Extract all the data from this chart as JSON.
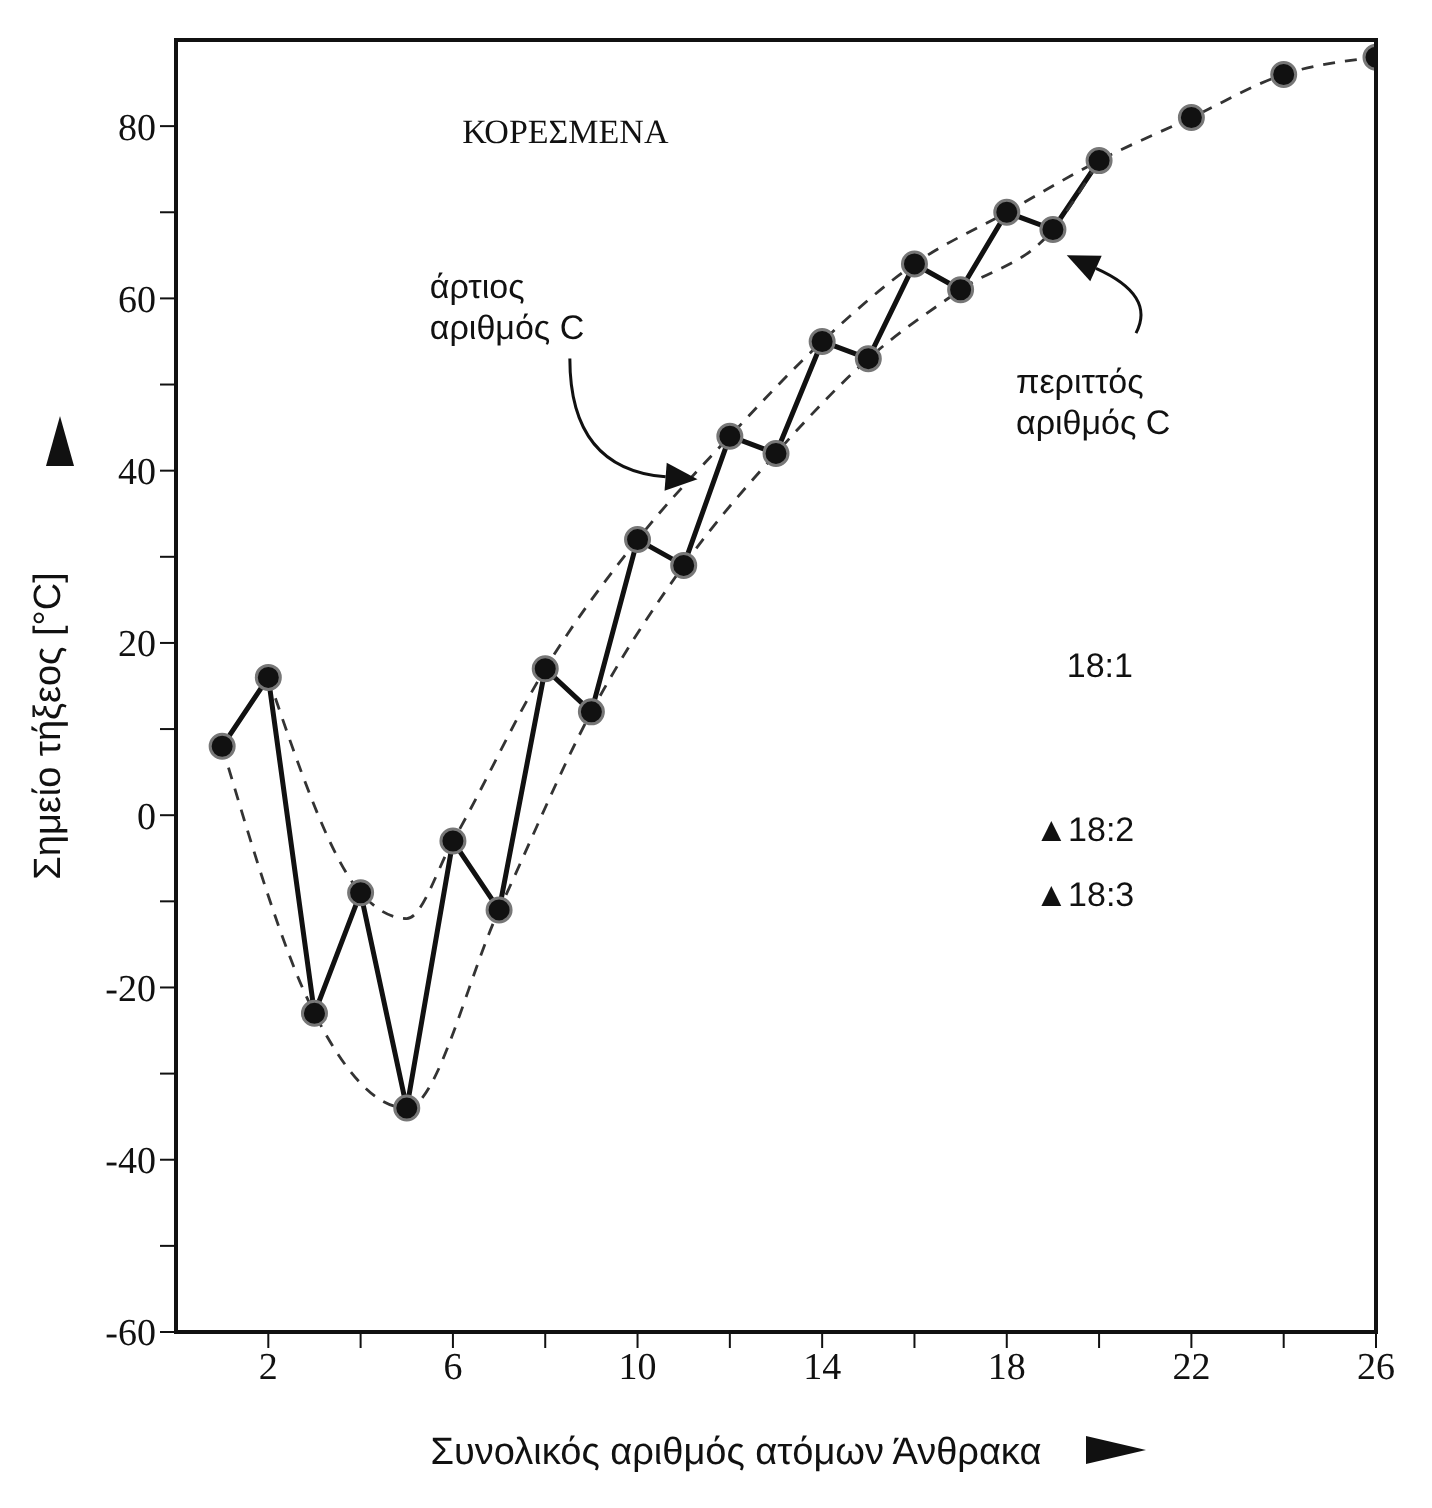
{
  "chart_data": {
    "type": "line",
    "xlabel": "Συνολικός  αριθμός ατόμων Άνθρακα",
    "ylabel": "Σημείο τήξεος [°C]",
    "xlim": [
      0,
      26
    ],
    "xticks": [
      2,
      {
        "value": 4,
        "label": null
      },
      6,
      {
        "value": 8,
        "label": null
      },
      10,
      {
        "value": 12,
        "label": null
      },
      14,
      {
        "value": 16,
        "label": null
      },
      18,
      {
        "value": 20,
        "label": null
      },
      22,
      {
        "value": 24,
        "label": null
      },
      26
    ],
    "ylim": [
      -60,
      90
    ],
    "yticks": [
      -60,
      {
        "value": -50,
        "label": null
      },
      -40,
      {
        "value": -30,
        "label": null
      },
      -20,
      {
        "value": -10,
        "label": null
      },
      0,
      {
        "value": 10,
        "label": null
      },
      20,
      {
        "value": 30,
        "label": null
      },
      40,
      {
        "value": 50,
        "label": null
      },
      60,
      {
        "value": 70,
        "label": null
      },
      80
    ],
    "series": [
      {
        "marker": "circle",
        "line_style": "solid",
        "color": "#111111",
        "x": [
          1,
          2,
          3,
          4,
          5,
          6,
          7,
          8,
          9,
          10,
          11,
          12,
          13,
          14,
          15,
          16,
          17,
          18,
          19,
          20
        ],
        "values": [
          8,
          16,
          -23,
          -9,
          -34,
          -3,
          -11,
          17,
          12,
          32,
          29,
          44,
          42,
          55,
          53,
          64,
          61,
          70,
          68,
          76
        ]
      },
      {
        "type": "scatter",
        "marker": "circle",
        "color": "#111111",
        "x": [
          22,
          24,
          26
        ],
        "values": [
          81,
          86,
          88
        ]
      },
      {
        "type": "line",
        "marker": "none",
        "line_style": "dashed",
        "color": "#333333",
        "x": [
          2,
          4,
          5,
          6,
          8,
          10,
          12,
          14,
          16,
          18,
          20,
          22,
          24,
          26
        ],
        "values": [
          16,
          -9,
          -12,
          -3,
          17,
          32,
          44,
          55,
          64,
          70,
          76,
          81,
          86,
          88
        ]
      },
      {
        "type": "line",
        "marker": "none",
        "line_style": "dashed",
        "color": "#333333",
        "x": [
          1,
          3,
          5,
          7,
          9,
          11,
          13,
          15,
          17,
          19,
          20
        ],
        "values": [
          8,
          -23,
          -34,
          -11,
          12,
          29,
          42,
          53,
          61,
          68,
          76
        ]
      }
    ],
    "annotations": [
      "ΚΟΡΕΣΜΕΝΑ",
      "άρτιος\nαριθμός C",
      "περιττός\nαριθμός C",
      "18:1",
      "▲18:2",
      "▲18:3"
    ]
  }
}
